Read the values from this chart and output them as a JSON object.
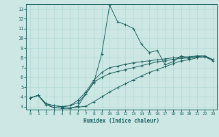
{
  "title": "",
  "xlabel": "Humidex (Indice chaleur)",
  "ylabel": "",
  "bg_color": "#cde8e4",
  "grid_color": "#b0d8d4",
  "line_color": "#1a6060",
  "xlim": [
    -0.5,
    23.5
  ],
  "ylim": [
    2.7,
    13.5
  ],
  "xticks": [
    0,
    1,
    2,
    3,
    4,
    5,
    6,
    7,
    8,
    9,
    10,
    11,
    12,
    13,
    14,
    15,
    16,
    17,
    18,
    19,
    20,
    21,
    22,
    23
  ],
  "yticks": [
    3,
    4,
    5,
    6,
    7,
    8,
    9,
    10,
    11,
    12,
    13
  ],
  "lines": [
    {
      "x": [
        0,
        1,
        2,
        3,
        4,
        5,
        6,
        7,
        8,
        9,
        10,
        11,
        12,
        13,
        14,
        15,
        16,
        17,
        18,
        19,
        20,
        21,
        22,
        23
      ],
      "y": [
        3.9,
        4.15,
        3.2,
        2.9,
        2.85,
        2.85,
        3.05,
        4.3,
        5.45,
        8.4,
        13.4,
        11.7,
        11.4,
        11.0,
        9.4,
        8.55,
        8.75,
        7.3,
        7.6,
        8.2,
        7.9,
        8.2,
        8.2,
        7.8
      ]
    },
    {
      "x": [
        0,
        1,
        2,
        3,
        4,
        5,
        6,
        7,
        8,
        9,
        10,
        11,
        12,
        13,
        14,
        15,
        16,
        17,
        18,
        19,
        20,
        21,
        22,
        23
      ],
      "y": [
        3.9,
        4.15,
        3.3,
        3.1,
        3.0,
        3.1,
        3.4,
        4.3,
        5.5,
        6.0,
        6.4,
        6.6,
        6.8,
        7.0,
        7.2,
        7.4,
        7.6,
        7.7,
        7.85,
        7.95,
        8.0,
        8.1,
        8.2,
        7.8
      ]
    },
    {
      "x": [
        0,
        1,
        2,
        3,
        4,
        5,
        6,
        7,
        8,
        9,
        10,
        11,
        12,
        13,
        14,
        15,
        16,
        17,
        18,
        19,
        20,
        21,
        22,
        23
      ],
      "y": [
        3.9,
        4.15,
        3.3,
        3.1,
        3.0,
        3.1,
        3.65,
        4.5,
        5.7,
        6.5,
        7.0,
        7.15,
        7.35,
        7.5,
        7.6,
        7.7,
        7.8,
        7.9,
        8.0,
        8.1,
        8.1,
        8.2,
        8.2,
        7.8
      ]
    },
    {
      "x": [
        0,
        1,
        2,
        3,
        4,
        5,
        6,
        7,
        8,
        9,
        10,
        11,
        12,
        13,
        14,
        15,
        16,
        17,
        18,
        19,
        20,
        21,
        22,
        23
      ],
      "y": [
        3.9,
        4.15,
        3.2,
        2.9,
        2.85,
        2.85,
        2.95,
        3.05,
        3.5,
        4.0,
        4.5,
        4.95,
        5.35,
        5.75,
        6.15,
        6.5,
        6.8,
        7.1,
        7.4,
        7.7,
        7.8,
        8.0,
        8.1,
        7.7
      ]
    }
  ]
}
